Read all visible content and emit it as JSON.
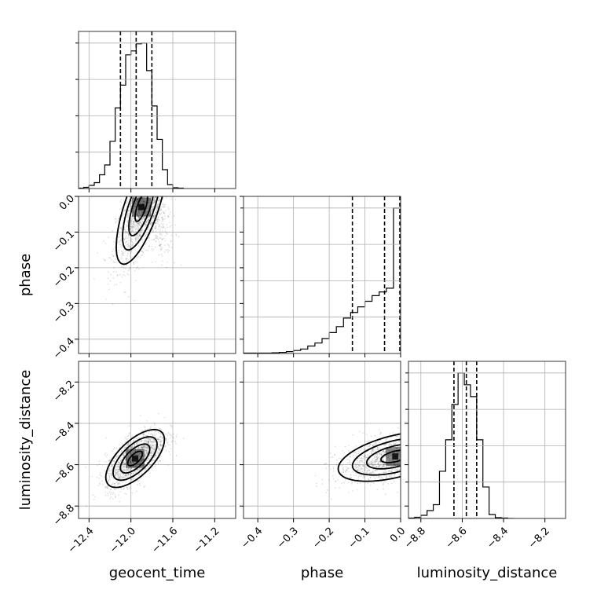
{
  "chart_data": {
    "type": "corner",
    "parameters": [
      "geocent_time",
      "phase",
      "luminosity_distance"
    ],
    "axis_labels": {
      "geocent_time": "geocent_time",
      "phase": "phase",
      "luminosity_distance": "luminosity_distance"
    },
    "ranges": {
      "geocent_time": [
        -12.5,
        -11.0
      ],
      "phase": [
        -0.44,
        0.0
      ],
      "luminosity_distance": [
        -8.86,
        -8.1
      ]
    },
    "ticks": {
      "geocent_time": [
        {
          "v": -12.4,
          "label": "−12.4"
        },
        {
          "v": -12.0,
          "label": "−12.0"
        },
        {
          "v": -11.6,
          "label": "−11.6"
        },
        {
          "v": -11.2,
          "label": "−11.2"
        }
      ],
      "phase": [
        {
          "v": -0.4,
          "label": "−0.4"
        },
        {
          "v": -0.3,
          "label": "−0.3"
        },
        {
          "v": -0.2,
          "label": "−0.2"
        },
        {
          "v": -0.1,
          "label": "−0.1"
        },
        {
          "v": 0.0,
          "label": "0.0"
        }
      ],
      "luminosity_distance": [
        {
          "v": -8.8,
          "label": "−8.8"
        },
        {
          "v": -8.6,
          "label": "−8.6"
        },
        {
          "v": -8.4,
          "label": "−8.4"
        },
        {
          "v": -8.2,
          "label": "−8.2"
        }
      ]
    },
    "histograms": {
      "geocent_time": {
        "bin_edges": [
          -12.5,
          -12.45,
          -12.4,
          -12.35,
          -12.3,
          -12.25,
          -12.2,
          -12.15,
          -12.1,
          -12.05,
          -12.0,
          -11.95,
          -11.9,
          -11.85,
          -11.8,
          -11.75,
          -11.7,
          -11.65,
          -11.6,
          -11.55,
          -11.5
        ],
        "counts": [
          1,
          3,
          8,
          15,
          35,
          60,
          120,
          205,
          263,
          340,
          350,
          368,
          370,
          300,
          210,
          125,
          48,
          10,
          2,
          1
        ],
        "quantiles": [
          -12.1,
          -11.95,
          -11.8
        ]
      },
      "phase": {
        "bin_edges": [
          -0.44,
          -0.42,
          -0.4,
          -0.38,
          -0.36,
          -0.34,
          -0.32,
          -0.3,
          -0.28,
          -0.26,
          -0.24,
          -0.22,
          -0.2,
          -0.18,
          -0.16,
          -0.14,
          -0.12,
          -0.1,
          -0.08,
          -0.06,
          -0.04,
          -0.02,
          0.0
        ],
        "counts": [
          1,
          1,
          1,
          1,
          2,
          3,
          5,
          8,
          12,
          20,
          28,
          40,
          56,
          72,
          95,
          110,
          125,
          140,
          155,
          165,
          175,
          390
        ],
        "quantiles": [
          -0.135,
          -0.045,
          0.0
        ]
      },
      "luminosity_distance": {
        "bin_edges": [
          -8.86,
          -8.83,
          -8.8,
          -8.77,
          -8.74,
          -8.71,
          -8.68,
          -8.65,
          -8.62,
          -8.59,
          -8.56,
          -8.53,
          -8.5,
          -8.47,
          -8.44,
          -8.41,
          -8.38,
          -8.35
        ],
        "counts": [
          1,
          3,
          8,
          20,
          35,
          120,
          200,
          290,
          370,
          340,
          310,
          200,
          80,
          10,
          2,
          1,
          0
        ],
        "quantiles": [
          -8.64,
          -8.58,
          -8.53
        ]
      }
    },
    "pairs": [
      {
        "x": "geocent_time",
        "y": "phase",
        "center": [
          -11.9,
          -0.03
        ],
        "sd": [
          0.12,
          0.08
        ],
        "corr": 0.7
      },
      {
        "x": "geocent_time",
        "y": "luminosity_distance",
        "center": [
          -11.96,
          -8.57
        ],
        "sd": [
          0.14,
          0.07
        ],
        "corr": 0.65
      },
      {
        "x": "phase",
        "y": "luminosity_distance",
        "center": [
          -0.015,
          -8.56
        ],
        "sd": [
          0.08,
          0.06
        ],
        "corr": 0.5
      }
    ],
    "grid": true,
    "legend": "none"
  }
}
